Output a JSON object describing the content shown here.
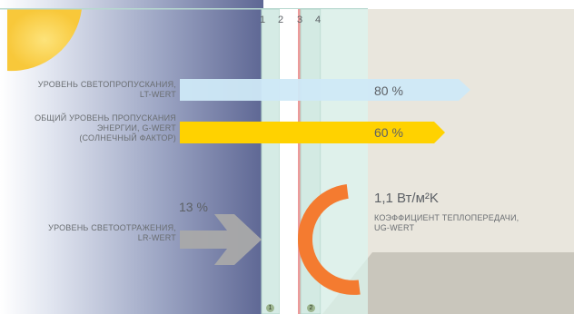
{
  "pane_numbers": [
    "1",
    "2",
    "3",
    "4"
  ],
  "bars": [
    {
      "id": "lt",
      "label_lines": [
        "УРОВЕНЬ СВЕТОПРОПУСКАНИЯ,",
        "LT-WERT"
      ],
      "value": "80 %",
      "color": "#cfe9f7"
    },
    {
      "id": "g",
      "label_lines": [
        "ОБЩИЙ УРОВЕНЬ ПРОПУСКАНИЯ",
        "ЭНЕРГИИ, G-WERT",
        "(СОЛНЕЧНЫЙ ФАКТОР)"
      ],
      "value": "60 %",
      "color": "#ffd200"
    }
  ],
  "reflection": {
    "label_lines": [
      "УРОВЕНЬ СВЕТООТРАЖЕНИЯ,",
      "LR-WERT"
    ],
    "value": "13 %",
    "color": "#a9a9a9"
  },
  "heat_transfer": {
    "value": "1,1 Вт/м²K",
    "label_lines": [
      "КОЭФФИЦИЕНТ ТЕПЛОПЕРЕДАЧИ,",
      "UG-WERT"
    ],
    "color": "#f47b30"
  },
  "glass_badges": [
    "1",
    "2"
  ],
  "colors": {
    "sun": "#fbd34b",
    "sky_dark": "#5e6794",
    "room_wall": "#e9e6dd",
    "room_floor": "#c9c6bc",
    "glass": "#d6ece6",
    "coating": "#e88a8a"
  }
}
